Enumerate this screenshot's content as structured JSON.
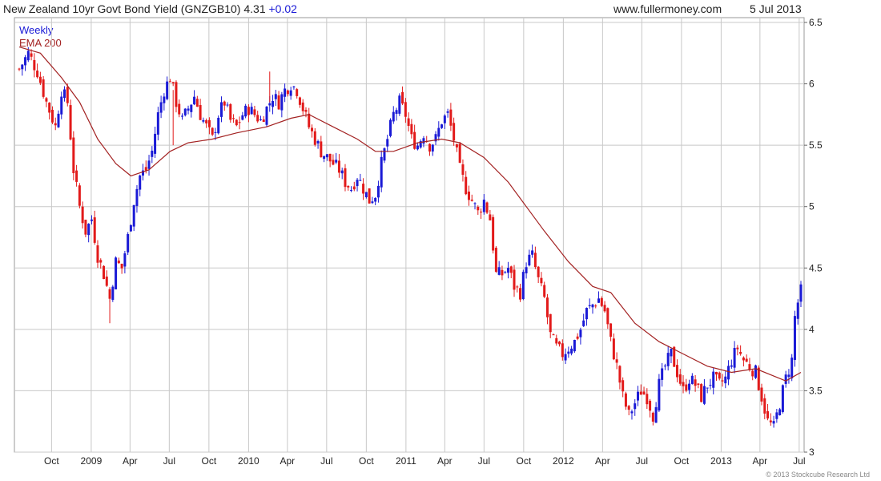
{
  "header": {
    "title": "New Zealand 10yr Govt Bond Yield (GNZGB10)",
    "last_value": "4.31",
    "change": "+0.02",
    "site": "www.fullermoney.com",
    "date": "5 Jul 2013"
  },
  "footer": {
    "copyright": "© 2013 Stockcube Research Ltd"
  },
  "colors": {
    "up": "#1a1ad6",
    "down": "#e21a1a",
    "ema": "#a32222",
    "grid": "#c8c8c8"
  },
  "chart_data": {
    "type": "candlestick",
    "frequency": "weekly",
    "legend": [
      "Weekly",
      "EMA 200"
    ],
    "ylim": [
      3,
      6.5
    ],
    "y_ticks": [
      3,
      3.5,
      4,
      4.5,
      5,
      5.5,
      6,
      6.5
    ],
    "y_tick_labels": [
      "3",
      "3.5",
      "4",
      "4.5",
      "5",
      "5.5",
      "6",
      "6.5"
    ],
    "x_ticks": [
      {
        "date": "2008-10-01",
        "label": "Oct"
      },
      {
        "date": "2009-01-01",
        "label": "2009"
      },
      {
        "date": "2009-04-01",
        "label": "Apr"
      },
      {
        "date": "2009-07-01",
        "label": "Jul"
      },
      {
        "date": "2009-10-01",
        "label": "Oct"
      },
      {
        "date": "2010-01-01",
        "label": "2010"
      },
      {
        "date": "2010-04-01",
        "label": "Apr"
      },
      {
        "date": "2010-07-01",
        "label": "Jul"
      },
      {
        "date": "2010-10-01",
        "label": "Oct"
      },
      {
        "date": "2011-01-01",
        "label": "2011"
      },
      {
        "date": "2011-04-01",
        "label": "Apr"
      },
      {
        "date": "2011-07-01",
        "label": "Jul"
      },
      {
        "date": "2011-10-01",
        "label": "Oct"
      },
      {
        "date": "2012-01-01",
        "label": "2012"
      },
      {
        "date": "2012-04-01",
        "label": "Apr"
      },
      {
        "date": "2012-07-01",
        "label": "Jul"
      },
      {
        "date": "2012-10-01",
        "label": "Oct"
      },
      {
        "date": "2013-01-01",
        "label": "2013"
      },
      {
        "date": "2013-04-01",
        "label": "Apr"
      },
      {
        "date": "2013-07-01",
        "label": "Jul"
      }
    ],
    "date_range": [
      "2008-07-18",
      "2013-07-05"
    ],
    "close_points": [
      [
        "2008-07-18",
        6.12
      ],
      [
        "2008-08-08",
        6.25
      ],
      [
        "2008-08-29",
        6.1
      ],
      [
        "2008-09-19",
        5.85
      ],
      [
        "2008-10-10",
        5.65
      ],
      [
        "2008-10-24",
        5.95
      ],
      [
        "2008-11-07",
        5.85
      ],
      [
        "2008-11-21",
        5.3
      ],
      [
        "2008-12-05",
        5.0
      ],
      [
        "2008-12-19",
        4.8
      ],
      [
        "2009-01-02",
        4.9
      ],
      [
        "2009-01-16",
        4.6
      ],
      [
        "2009-01-30",
        4.45
      ],
      [
        "2009-02-13",
        4.25
      ],
      [
        "2009-02-27",
        4.55
      ],
      [
        "2009-03-13",
        4.5
      ],
      [
        "2009-03-27",
        4.75
      ],
      [
        "2009-04-10",
        5.05
      ],
      [
        "2009-04-24",
        5.25
      ],
      [
        "2009-05-08",
        5.3
      ],
      [
        "2009-05-22",
        5.45
      ],
      [
        "2009-06-05",
        5.75
      ],
      [
        "2009-06-19",
        5.95
      ],
      [
        "2009-07-03",
        6.05
      ],
      [
        "2009-07-17",
        5.85
      ],
      [
        "2009-07-31",
        5.7
      ],
      [
        "2009-08-14",
        5.8
      ],
      [
        "2009-08-28",
        5.9
      ],
      [
        "2009-09-11",
        5.75
      ],
      [
        "2009-09-25",
        5.65
      ],
      [
        "2009-10-09",
        5.55
      ],
      [
        "2009-10-23",
        5.75
      ],
      [
        "2009-11-06",
        5.85
      ],
      [
        "2009-11-20",
        5.7
      ],
      [
        "2009-12-04",
        5.65
      ],
      [
        "2009-12-18",
        5.75
      ],
      [
        "2010-01-01",
        5.8
      ],
      [
        "2010-01-15",
        5.75
      ],
      [
        "2010-01-29",
        5.7
      ],
      [
        "2010-02-12",
        5.8
      ],
      [
        "2010-02-26",
        5.9
      ],
      [
        "2010-03-12",
        5.85
      ],
      [
        "2010-03-26",
        5.95
      ],
      [
        "2010-04-09",
        6.0
      ],
      [
        "2010-04-23",
        5.95
      ],
      [
        "2010-05-07",
        5.8
      ],
      [
        "2010-05-21",
        5.65
      ],
      [
        "2010-06-04",
        5.55
      ],
      [
        "2010-06-18",
        5.45
      ],
      [
        "2010-07-02",
        5.4
      ],
      [
        "2010-07-16",
        5.35
      ],
      [
        "2010-07-30",
        5.3
      ],
      [
        "2010-08-13",
        5.2
      ],
      [
        "2010-08-27",
        5.15
      ],
      [
        "2010-09-10",
        5.25
      ],
      [
        "2010-09-24",
        5.15
      ],
      [
        "2010-10-08",
        5.05
      ],
      [
        "2010-10-22",
        5.1
      ],
      [
        "2010-11-05",
        5.35
      ],
      [
        "2010-11-19",
        5.55
      ],
      [
        "2010-12-03",
        5.75
      ],
      [
        "2010-12-17",
        5.85
      ],
      [
        "2010-12-31",
        5.75
      ],
      [
        "2011-01-14",
        5.55
      ],
      [
        "2011-01-28",
        5.5
      ],
      [
        "2011-02-11",
        5.6
      ],
      [
        "2011-02-25",
        5.5
      ],
      [
        "2011-03-11",
        5.55
      ],
      [
        "2011-03-25",
        5.7
      ],
      [
        "2011-04-08",
        5.75
      ],
      [
        "2011-04-22",
        5.55
      ],
      [
        "2011-05-06",
        5.3
      ],
      [
        "2011-05-20",
        5.15
      ],
      [
        "2011-06-03",
        5.05
      ],
      [
        "2011-06-17",
        4.95
      ],
      [
        "2011-07-01",
        5.05
      ],
      [
        "2011-07-15",
        4.9
      ],
      [
        "2011-07-29",
        4.45
      ],
      [
        "2011-08-12",
        4.45
      ],
      [
        "2011-08-26",
        4.5
      ],
      [
        "2011-09-09",
        4.35
      ],
      [
        "2011-09-23",
        4.3
      ],
      [
        "2011-10-07",
        4.55
      ],
      [
        "2011-10-21",
        4.6
      ],
      [
        "2011-11-04",
        4.4
      ],
      [
        "2011-11-18",
        4.25
      ],
      [
        "2011-12-02",
        3.95
      ],
      [
        "2011-12-16",
        3.85
      ],
      [
        "2011-12-30",
        3.8
      ],
      [
        "2012-01-13",
        3.85
      ],
      [
        "2012-01-27",
        3.9
      ],
      [
        "2012-02-10",
        4.0
      ],
      [
        "2012-02-24",
        4.15
      ],
      [
        "2012-03-09",
        4.2
      ],
      [
        "2012-03-23",
        4.25
      ],
      [
        "2012-04-06",
        4.15
      ],
      [
        "2012-04-20",
        3.9
      ],
      [
        "2012-05-04",
        3.7
      ],
      [
        "2012-05-18",
        3.45
      ],
      [
        "2012-06-01",
        3.3
      ],
      [
        "2012-06-15",
        3.4
      ],
      [
        "2012-06-29",
        3.5
      ],
      [
        "2012-07-13",
        3.45
      ],
      [
        "2012-07-27",
        3.3
      ],
      [
        "2012-08-10",
        3.55
      ],
      [
        "2012-08-24",
        3.7
      ],
      [
        "2012-09-07",
        3.8
      ],
      [
        "2012-09-21",
        3.65
      ],
      [
        "2012-10-05",
        3.5
      ],
      [
        "2012-10-19",
        3.6
      ],
      [
        "2012-11-02",
        3.55
      ],
      [
        "2012-11-16",
        3.45
      ],
      [
        "2012-11-30",
        3.55
      ],
      [
        "2012-12-14",
        3.6
      ],
      [
        "2012-12-28",
        3.55
      ],
      [
        "2013-01-11",
        3.6
      ],
      [
        "2013-01-25",
        3.75
      ],
      [
        "2013-02-08",
        3.85
      ],
      [
        "2013-02-22",
        3.75
      ],
      [
        "2013-03-08",
        3.7
      ],
      [
        "2013-03-22",
        3.65
      ],
      [
        "2013-04-05",
        3.45
      ],
      [
        "2013-04-19",
        3.25
      ],
      [
        "2013-05-03",
        3.2
      ],
      [
        "2013-05-17",
        3.4
      ],
      [
        "2013-05-31",
        3.6
      ],
      [
        "2013-06-14",
        3.75
      ],
      [
        "2013-06-21",
        4.1
      ],
      [
        "2013-06-28",
        4.22
      ],
      [
        "2013-07-05",
        4.31
      ]
    ],
    "ema_points": [
      [
        "2008-07-18",
        6.3
      ],
      [
        "2008-09-05",
        6.25
      ],
      [
        "2008-10-24",
        6.05
      ],
      [
        "2008-12-05",
        5.85
      ],
      [
        "2009-01-16",
        5.55
      ],
      [
        "2009-02-27",
        5.35
      ],
      [
        "2009-04-03",
        5.25
      ],
      [
        "2009-05-15",
        5.3
      ],
      [
        "2009-07-03",
        5.45
      ],
      [
        "2009-08-14",
        5.52
      ],
      [
        "2009-10-09",
        5.55
      ],
      [
        "2009-12-04",
        5.6
      ],
      [
        "2010-02-12",
        5.65
      ],
      [
        "2010-04-09",
        5.72
      ],
      [
        "2010-05-21",
        5.75
      ],
      [
        "2010-07-16",
        5.65
      ],
      [
        "2010-09-10",
        5.55
      ],
      [
        "2010-10-22",
        5.45
      ],
      [
        "2010-12-03",
        5.45
      ],
      [
        "2011-01-28",
        5.52
      ],
      [
        "2011-03-25",
        5.55
      ],
      [
        "2011-05-06",
        5.52
      ],
      [
        "2011-07-01",
        5.4
      ],
      [
        "2011-08-26",
        5.2
      ],
      [
        "2011-10-07",
        5.0
      ],
      [
        "2011-11-18",
        4.8
      ],
      [
        "2012-01-13",
        4.55
      ],
      [
        "2012-03-09",
        4.35
      ],
      [
        "2012-04-20",
        4.3
      ],
      [
        "2012-06-15",
        4.05
      ],
      [
        "2012-08-10",
        3.9
      ],
      [
        "2012-10-05",
        3.8
      ],
      [
        "2012-11-30",
        3.7
      ],
      [
        "2013-01-25",
        3.65
      ],
      [
        "2013-03-22",
        3.68
      ],
      [
        "2013-05-03",
        3.62
      ],
      [
        "2013-05-31",
        3.58
      ],
      [
        "2013-07-05",
        3.65
      ]
    ],
    "x_spikes": [
      {
        "date": "2009-02-13",
        "low": 4.05
      },
      {
        "date": "2010-02-19",
        "high": 6.1
      },
      {
        "date": "2009-07-10",
        "low": 5.5
      }
    ]
  }
}
